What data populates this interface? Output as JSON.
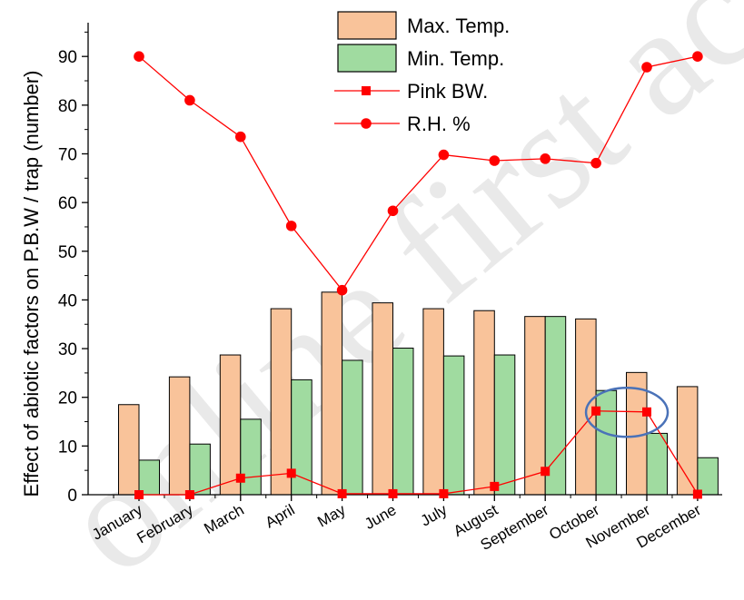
{
  "watermark": "online first accepted",
  "chart_data": {
    "type": "bar",
    "categories": [
      "January",
      "February",
      "March",
      "April",
      "May",
      "June",
      "July",
      "August",
      "September",
      "October",
      "November",
      "December"
    ],
    "ylabel": "Effect of abiotic factors on P.B.W / trap (number)",
    "xlabel": "",
    "ylim": [
      0,
      96
    ],
    "yticks": [
      0,
      10,
      20,
      30,
      40,
      50,
      60,
      70,
      80,
      90
    ],
    "series": [
      {
        "name": "Max. Temp.",
        "kind": "bar",
        "color": "#f9c39a",
        "values": [
          18.5,
          24.2,
          28.7,
          38.2,
          41.6,
          39.4,
          38.2,
          37.8,
          36.6,
          36.1,
          25.1,
          22.2
        ]
      },
      {
        "name": "Min. Temp.",
        "kind": "bar",
        "color": "#a0dba0",
        "values": [
          7.1,
          10.4,
          15.5,
          23.6,
          27.6,
          30.1,
          28.5,
          28.7,
          36.6,
          21.4,
          12.6,
          7.6
        ]
      },
      {
        "name": "Pink BW.",
        "kind": "line",
        "marker": "square",
        "color": "#ff0000",
        "values": [
          0,
          0,
          3.4,
          4.4,
          0.2,
          0.2,
          0.2,
          1.7,
          4.8,
          17.2,
          17.0,
          0.1
        ]
      },
      {
        "name": "R.H. %",
        "kind": "line",
        "marker": "circle",
        "color": "#ff0000",
        "values": [
          90,
          81,
          73.5,
          55.2,
          42,
          58.3,
          69.8,
          68.6,
          69,
          68.1,
          87.8,
          90
        ]
      }
    ],
    "legend_position": "top-center",
    "annotation": {
      "shape": "ellipse",
      "color": "#4a72b8",
      "around": [
        "October",
        "November"
      ],
      "series": "Pink BW."
    }
  }
}
